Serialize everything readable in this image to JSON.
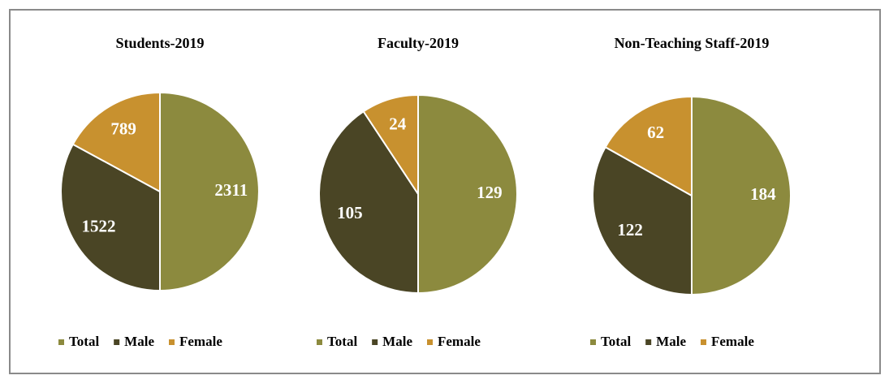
{
  "chart_data": [
    {
      "type": "pie",
      "title": "Students-2019",
      "categories": [
        "Total",
        "Male",
        "Female"
      ],
      "values": [
        2311,
        1522,
        789
      ],
      "colors": [
        "#8c8a3e",
        "#4a4525",
        "#c8912f"
      ]
    },
    {
      "type": "pie",
      "title": "Faculty-2019",
      "categories": [
        "Total",
        "Male",
        "Female"
      ],
      "values": [
        129,
        105,
        24
      ],
      "colors": [
        "#8c8a3e",
        "#4a4525",
        "#c8912f"
      ]
    },
    {
      "type": "pie",
      "title": "Non-Teaching Staff-2019",
      "categories": [
        "Total",
        "Male",
        "Female"
      ],
      "values": [
        184,
        122,
        62
      ],
      "colors": [
        "#8c8a3e",
        "#4a4525",
        "#c8912f"
      ]
    }
  ]
}
